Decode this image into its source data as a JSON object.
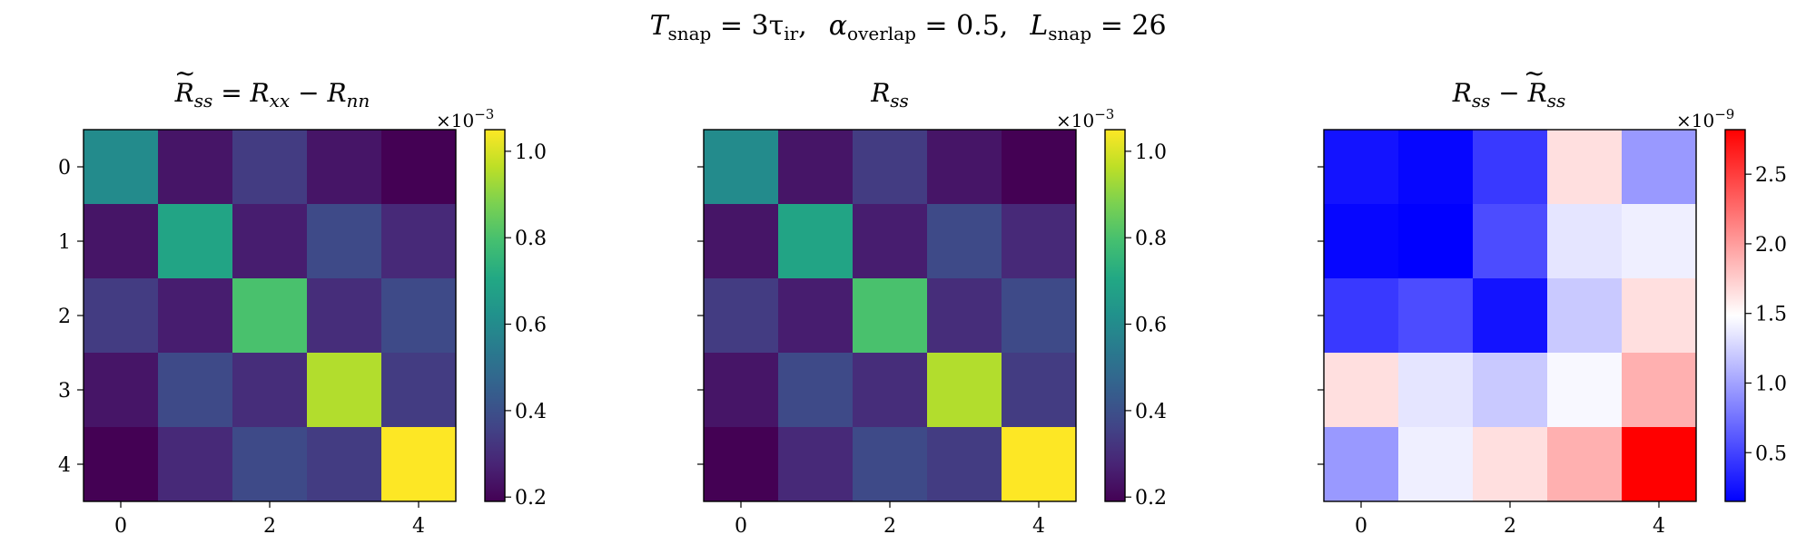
{
  "figure": {
    "suptitle_parts": {
      "t_symbol": "T",
      "t_sub": "snap",
      "t_rhs": " = 3τ",
      "t_rhs_sub": "ir",
      "t_sep": ",",
      "a_symbol": "α",
      "a_sub": "overlap",
      "a_rhs": " = 0.5,",
      "l_symbol": "L",
      "l_sub": "snap",
      "l_rhs": " = 26"
    }
  },
  "chart_data": [
    {
      "type": "heatmap",
      "title_parts": {
        "base": "R",
        "sub": "ss",
        "eq": " = R",
        "sub2": "xx",
        "minus": " − R",
        "sub3": "nn"
      },
      "x_ticks": [
        "0",
        "2",
        "4"
      ],
      "y_ticks": [
        "0",
        "1",
        "2",
        "3",
        "4"
      ],
      "colormap": "viridis",
      "clim": [
        0.19,
        1.05
      ],
      "colorbar_scale_base": "×10",
      "colorbar_scale_exp": "−3",
      "colorbar_ticks": [
        {
          "value": 0.2,
          "label": "0.2"
        },
        {
          "value": 0.4,
          "label": "0.4"
        },
        {
          "value": 0.6,
          "label": "0.6"
        },
        {
          "value": 0.8,
          "label": "0.8"
        },
        {
          "value": 1.0,
          "label": "1.0"
        }
      ],
      "matrix": [
        [
          0.6,
          0.24,
          0.34,
          0.24,
          0.19
        ],
        [
          0.24,
          0.69,
          0.26,
          0.38,
          0.29
        ],
        [
          0.34,
          0.26,
          0.8,
          0.3,
          0.38
        ],
        [
          0.24,
          0.38,
          0.3,
          0.95,
          0.34
        ],
        [
          0.19,
          0.29,
          0.38,
          0.34,
          1.05
        ]
      ]
    },
    {
      "type": "heatmap",
      "title_parts": {
        "base": "R",
        "sub": "ss"
      },
      "x_ticks": [
        "0",
        "2",
        "4"
      ],
      "y_ticks": [],
      "colormap": "viridis",
      "clim": [
        0.19,
        1.05
      ],
      "colorbar_scale_base": "×10",
      "colorbar_scale_exp": "−3",
      "colorbar_ticks": [
        {
          "value": 0.2,
          "label": "0.2"
        },
        {
          "value": 0.4,
          "label": "0.4"
        },
        {
          "value": 0.6,
          "label": "0.6"
        },
        {
          "value": 0.8,
          "label": "0.8"
        },
        {
          "value": 1.0,
          "label": "1.0"
        }
      ],
      "matrix": [
        [
          0.6,
          0.24,
          0.34,
          0.24,
          0.19
        ],
        [
          0.24,
          0.69,
          0.26,
          0.38,
          0.29
        ],
        [
          0.34,
          0.26,
          0.8,
          0.3,
          0.38
        ],
        [
          0.24,
          0.38,
          0.3,
          0.95,
          0.34
        ],
        [
          0.19,
          0.29,
          0.38,
          0.34,
          1.05
        ]
      ]
    },
    {
      "type": "heatmap",
      "title_parts": {
        "base": "R",
        "sub": "ss",
        "minus": " − R",
        "sub2": "ss"
      },
      "x_ticks": [
        "0",
        "2",
        "4"
      ],
      "y_ticks": [],
      "colormap": "bwr",
      "clim": [
        0.15,
        2.82
      ],
      "colorbar_scale_base": "×10",
      "colorbar_scale_exp": "−9",
      "colorbar_ticks": [
        {
          "value": 0.5,
          "label": "0.5"
        },
        {
          "value": 1.0,
          "label": "1.0"
        },
        {
          "value": 1.5,
          "label": "1.5"
        },
        {
          "value": 2.0,
          "label": "2.0"
        },
        {
          "value": 2.5,
          "label": "2.5"
        }
      ],
      "matrix": [
        [
          0.25,
          0.18,
          0.45,
          1.65,
          0.95
        ],
        [
          0.18,
          0.15,
          0.55,
          1.35,
          1.4
        ],
        [
          0.45,
          0.55,
          0.25,
          1.2,
          1.65
        ],
        [
          1.65,
          1.35,
          1.2,
          1.45,
          1.9
        ],
        [
          0.95,
          1.4,
          1.65,
          1.9,
          2.82
        ]
      ]
    }
  ]
}
